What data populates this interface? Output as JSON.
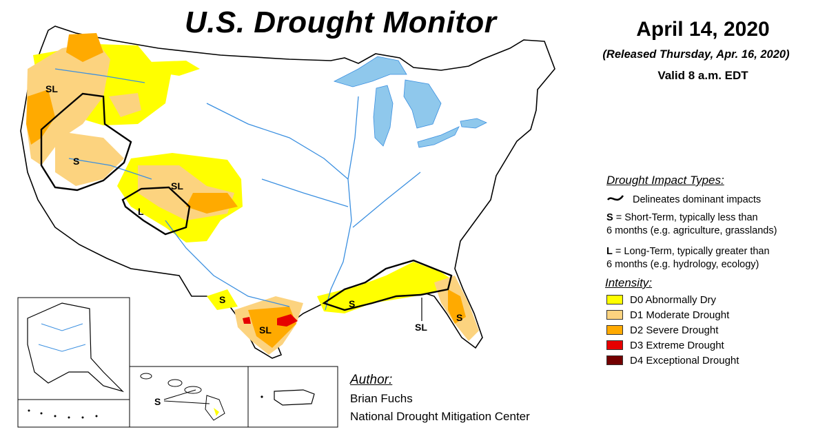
{
  "header": {
    "title": "U.S. Drought Monitor",
    "date": "April 14, 2020",
    "released": "(Released Thursday, Apr. 16, 2020)",
    "valid": "Valid 8 a.m. EDT"
  },
  "impacts": {
    "heading": "Drought Impact Types:",
    "delineates": "Delineates dominant impacts",
    "short_key": "S",
    "short_text_1": " = Short-Term, typically less than",
    "short_text_2": "6 months (e.g. agriculture, grasslands)",
    "long_key": "L",
    "long_text_1": " = Long-Term, typically greater than",
    "long_text_2": "6 months (e.g. hydrology, ecology)"
  },
  "intensity": {
    "heading": "Intensity:",
    "items": [
      {
        "label": "D0 Abnormally Dry",
        "color": "#ffff00"
      },
      {
        "label": "D1 Moderate Drought",
        "color": "#fcd37f"
      },
      {
        "label": "D2 Severe Drought",
        "color": "#ffaa00"
      },
      {
        "label": "D3 Extreme Drought",
        "color": "#e60000"
      },
      {
        "label": "D4 Exceptional Drought",
        "color": "#730000"
      }
    ]
  },
  "author": {
    "heading": "Author:",
    "name": "Brian Fuchs",
    "org": "National Drought Mitigation Center"
  },
  "map_labels": {
    "northwest": "SL",
    "great_basin": "S",
    "colorado": "SL",
    "four_corners": "L",
    "west_texas": "S",
    "south_texas": "SL",
    "gulf_coast": "S",
    "florida_panhandle": "SL",
    "florida_peninsula": "S",
    "hawaii": "S"
  },
  "colors": {
    "water": "#8fc8ec",
    "river": "#3a8fe0",
    "boundary": "#000000"
  }
}
